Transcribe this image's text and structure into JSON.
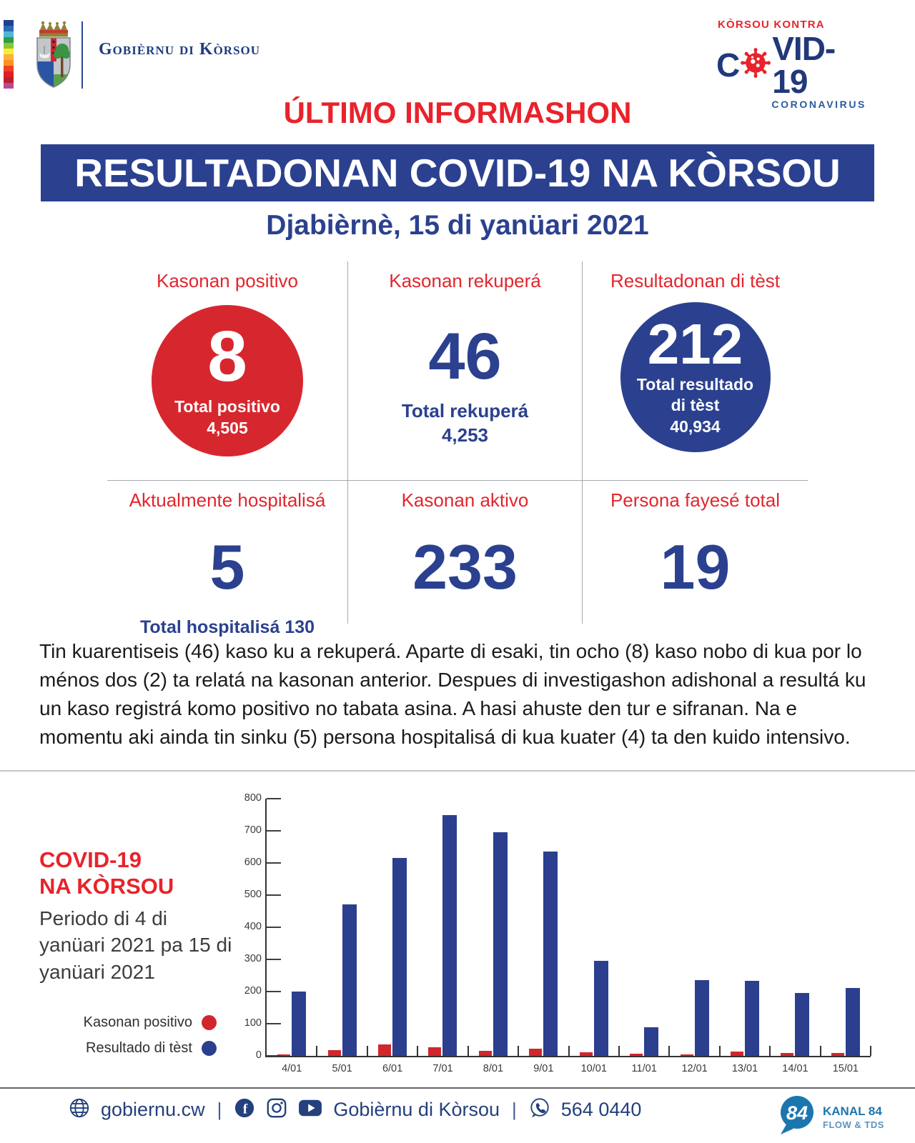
{
  "colors": {
    "navy": "#2b418f",
    "bar_blue": "#2b3f8e",
    "red": "#d2262d",
    "accent_red": "#e8232b",
    "footer_navy": "#24407d",
    "kanal_blue": "#1c76ae"
  },
  "header": {
    "gov_name": "Gobièrnu di Kòrsou",
    "flag_colors": [
      "#1f3f8f",
      "#2a6cb5",
      "#52b5d8",
      "#2f9e41",
      "#8cc63e",
      "#f9ed32",
      "#fbb040",
      "#f7941d",
      "#ef4123",
      "#da2128",
      "#be1e2d",
      "#b64a96"
    ],
    "covid_logo": {
      "kicker": "KÒRSOU KONTRA",
      "title_left": "C",
      "title_right": "VID-19",
      "subtitle": "CORONAVIRUS"
    }
  },
  "title": {
    "kicker": "ÚLTIMO INFORMASHON",
    "banner": "RESULTADONAN COVID-19 NA KÒRSOU",
    "date": "Djabièrnè, 15 di yanüari 2021"
  },
  "stats": [
    {
      "label": "Kasonan positivo",
      "value": "8",
      "sub1": "Total positivo",
      "sub2": "4,505"
    },
    {
      "label": "Kasonan rekuperá",
      "value": "46",
      "sub1": "Total rekuperá",
      "sub2": "4,253"
    },
    {
      "label": "Resultadonan di tèst",
      "value": "212",
      "sub1": "Total resultado",
      "sub2": "di tèst",
      "sub3": "40,934"
    },
    {
      "label": "Aktualmente hospitalisá",
      "value": "5",
      "sub1": "Total hospitalisá 130"
    },
    {
      "label": "Kasonan aktivo",
      "value": "233"
    },
    {
      "label": "Persona fayesé total",
      "value": "19"
    }
  ],
  "paragraph": "Tin kuarentiseis (46) kaso ku a rekuperá. Aparte di esaki, tin ocho (8) kaso nobo di kua por lo ménos dos (2) ta relatá na kasonan anterior. Despues di investigashon adishonal a resultá ku un kaso registrá komo positivo no tabata asina. A hasi ahuste den tur e sifranan. Na e momentu aki ainda tin sinku (5) persona hospitalisá di kua kuater (4) ta den kuido intensivo.",
  "chart": {
    "heading_line1": "COVID-19",
    "heading_line2": "NA KÒRSOU",
    "period": "Periodo di 4 di yanüari 2021 pa 15 di yanüari 2021",
    "legend": [
      {
        "label": "Kasonan positivo",
        "color": "#d2262d"
      },
      {
        "label": "Resultado di tèst",
        "color": "#2b3f8e"
      }
    ]
  },
  "chart_data": {
    "type": "bar",
    "title": "COVID-19 NA KÒRSOU — Periodo di 4 di yanüari 2021 pa 15 di yanüari 2021",
    "categories": [
      "4/01",
      "5/01",
      "6/01",
      "7/01",
      "8/01",
      "9/01",
      "10/01",
      "11/01",
      "12/01",
      "13/01",
      "14/01",
      "15/01"
    ],
    "series": [
      {
        "name": "Kasonan positivo",
        "color": "#d2262d",
        "values": [
          5,
          18,
          35,
          26,
          16,
          22,
          12,
          6,
          5,
          13,
          9,
          8
        ]
      },
      {
        "name": "Resultado di tèst",
        "color": "#2b3f8e",
        "values": [
          200,
          472,
          615,
          748,
          695,
          635,
          295,
          90,
          235,
          233,
          195,
          212
        ]
      }
    ],
    "xlabel": "",
    "ylabel": "",
    "ylim": [
      0,
      800
    ],
    "ytick_step": 100,
    "grid": false,
    "legend_position": "left"
  },
  "footer": {
    "website": "gobiernu.cw",
    "sep": "|",
    "social_name": "Gobièrnu di Kòrsou",
    "phone": "564 0440",
    "kanal": {
      "logo": "84",
      "name": "KANAL 84",
      "tagline": "FLOW & TDS"
    }
  }
}
